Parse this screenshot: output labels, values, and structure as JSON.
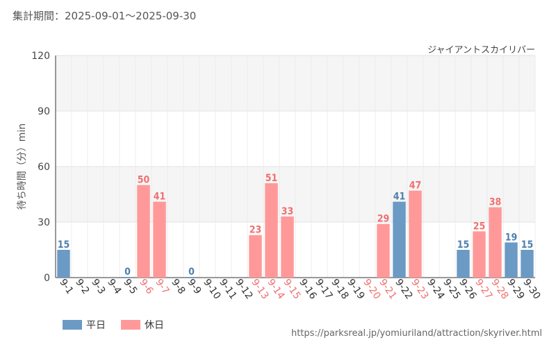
{
  "header": {
    "period_label": "集計期間：2025-09-01～2025-09-30",
    "attraction_name": "ジャイアントスカイリバー"
  },
  "footer": {
    "url": "https://parksreal.jp/yomiuriland/attraction/skyriver.html"
  },
  "legend": {
    "weekday": "平日",
    "holiday": "休日"
  },
  "colors": {
    "weekday": "#6b9ac4",
    "weekday_label": "#4f80ad",
    "holiday": "#ff9999",
    "holiday_label": "#f07070",
    "weekday_tick": "#333333"
  },
  "chart_data": {
    "type": "bar",
    "title": "ジャイアントスカイリバー",
    "ylabel": "待ち時間（分）min",
    "xlabel": "",
    "ylim": [
      0,
      120
    ],
    "yticks": [
      0,
      30,
      60,
      90,
      120
    ],
    "categories": [
      "9-1",
      "9-2",
      "9-3",
      "9-4",
      "9-5",
      "9-6",
      "9-7",
      "9-8",
      "9-9",
      "9-10",
      "9-11",
      "9-12",
      "9-13",
      "9-14",
      "9-15",
      "9-16",
      "9-17",
      "9-18",
      "9-19",
      "9-20",
      "9-21",
      "9-22",
      "9-23",
      "9-24",
      "9-25",
      "9-26",
      "9-27",
      "9-28",
      "9-29",
      "9-30"
    ],
    "day_type": [
      "weekday",
      "weekday",
      "weekday",
      "weekday",
      "weekday",
      "holiday",
      "holiday",
      "weekday",
      "weekday",
      "weekday",
      "weekday",
      "weekday",
      "holiday",
      "holiday",
      "holiday",
      "weekday",
      "weekday",
      "weekday",
      "weekday",
      "holiday",
      "holiday",
      "weekday",
      "holiday",
      "weekday",
      "weekday",
      "weekday",
      "holiday",
      "holiday",
      "weekday",
      "weekday"
    ],
    "values": [
      15,
      null,
      null,
      null,
      0,
      50,
      41,
      null,
      0,
      null,
      null,
      null,
      23,
      51,
      33,
      null,
      null,
      null,
      null,
      null,
      29,
      41,
      47,
      null,
      null,
      15,
      25,
      38,
      19,
      15
    ],
    "series": [
      {
        "name": "平日",
        "values": [
          15,
          null,
          null,
          null,
          0,
          null,
          null,
          null,
          0,
          null,
          null,
          null,
          null,
          null,
          null,
          null,
          null,
          null,
          null,
          null,
          null,
          41,
          null,
          null,
          null,
          15,
          null,
          null,
          19,
          15
        ]
      },
      {
        "name": "休日",
        "values": [
          null,
          null,
          null,
          null,
          null,
          50,
          41,
          null,
          null,
          null,
          null,
          null,
          23,
          51,
          33,
          null,
          null,
          null,
          null,
          null,
          29,
          null,
          47,
          null,
          null,
          null,
          25,
          38,
          null,
          null
        ]
      }
    ]
  }
}
